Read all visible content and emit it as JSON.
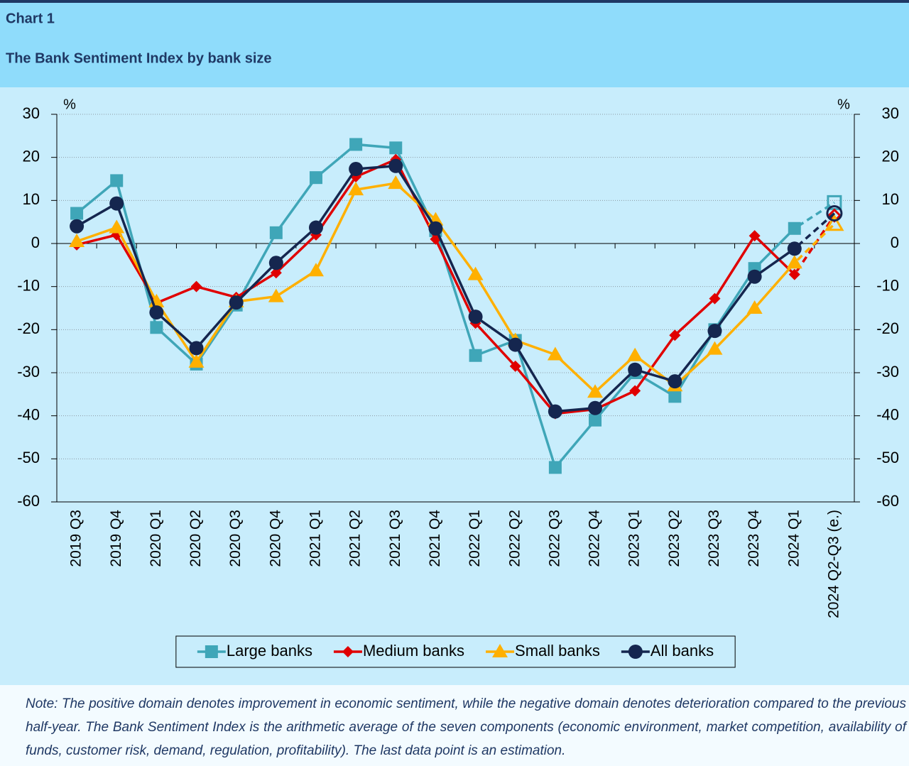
{
  "chart_data": {
    "type": "line",
    "label": "Chart 1",
    "title": "The Bank Sentiment Index by bank size",
    "y_unit": "%",
    "y2_unit": "%",
    "categories": [
      "2019 Q3",
      "2019 Q4",
      "2020 Q1",
      "2020 Q2",
      "2020 Q3",
      "2020 Q4",
      "2021 Q1",
      "2021 Q2",
      "2021 Q3",
      "2021 Q4",
      "2022 Q1",
      "2022 Q2",
      "2022 Q3",
      "2022 Q4",
      "2023 Q1",
      "2023 Q2",
      "2023 Q3",
      "2023 Q4",
      "2024 Q1",
      "2024 Q2-Q3 (e.)"
    ],
    "series": [
      {
        "name": "Large banks",
        "color": "#3fa6b8",
        "marker": "square",
        "values": [
          7,
          14.6,
          -19.5,
          -28,
          -14.3,
          2.5,
          15.3,
          23,
          22.2,
          3,
          -26,
          -22.5,
          -52,
          -41,
          -30,
          -35.5,
          -20,
          -5.8,
          3.5,
          9.5
        ]
      },
      {
        "name": "Medium banks",
        "color": "#e00000",
        "marker": "diamond",
        "values": [
          -0.3,
          2,
          -13.8,
          -10,
          -12.5,
          -6.8,
          2,
          15.5,
          19.5,
          1,
          -18.5,
          -28.5,
          -39.5,
          -38.5,
          -34.2,
          -21.3,
          -12.8,
          1.8,
          -7.2,
          6.5
        ]
      },
      {
        "name": "Small banks",
        "color": "#ffb000",
        "marker": "triangle",
        "values": [
          0.5,
          3.7,
          -13.5,
          -27.5,
          -13.5,
          -12.3,
          -6.3,
          12.5,
          14,
          5.5,
          -7.2,
          -22.5,
          -25.8,
          -34.5,
          -26,
          -33,
          -24.5,
          -15,
          -4.5,
          4.5
        ]
      },
      {
        "name": "All banks",
        "color": "#15264f",
        "marker": "circle",
        "values": [
          4,
          9.3,
          -16,
          -24.3,
          -13.7,
          -4.5,
          3.7,
          17.3,
          18,
          3.5,
          -17,
          -23.5,
          -39,
          -38.2,
          -29.3,
          -32,
          -20.3,
          -7.7,
          -1.2,
          7
        ]
      }
    ],
    "ylim": [
      -60,
      30
    ],
    "yticks": [
      -60,
      -50,
      -40,
      -30,
      -20,
      -10,
      0,
      10,
      20,
      30
    ],
    "y2lim": [
      -60,
      30
    ],
    "y2ticks": [
      -60,
      -50,
      -40,
      -30,
      -20,
      -10,
      0,
      10,
      20,
      30
    ],
    "grid": true,
    "legend": "bottom",
    "note": "Note: The positive domain denotes improvement in economic sentiment, while the negative domain denotes deterioration compared to the previous half-year. The Bank Sentiment Index is the arithmetic average of the seven components (economic environment, market competition, availability of funds, customer risk, demand, regulation, profitability). The last data point is an estimation."
  }
}
